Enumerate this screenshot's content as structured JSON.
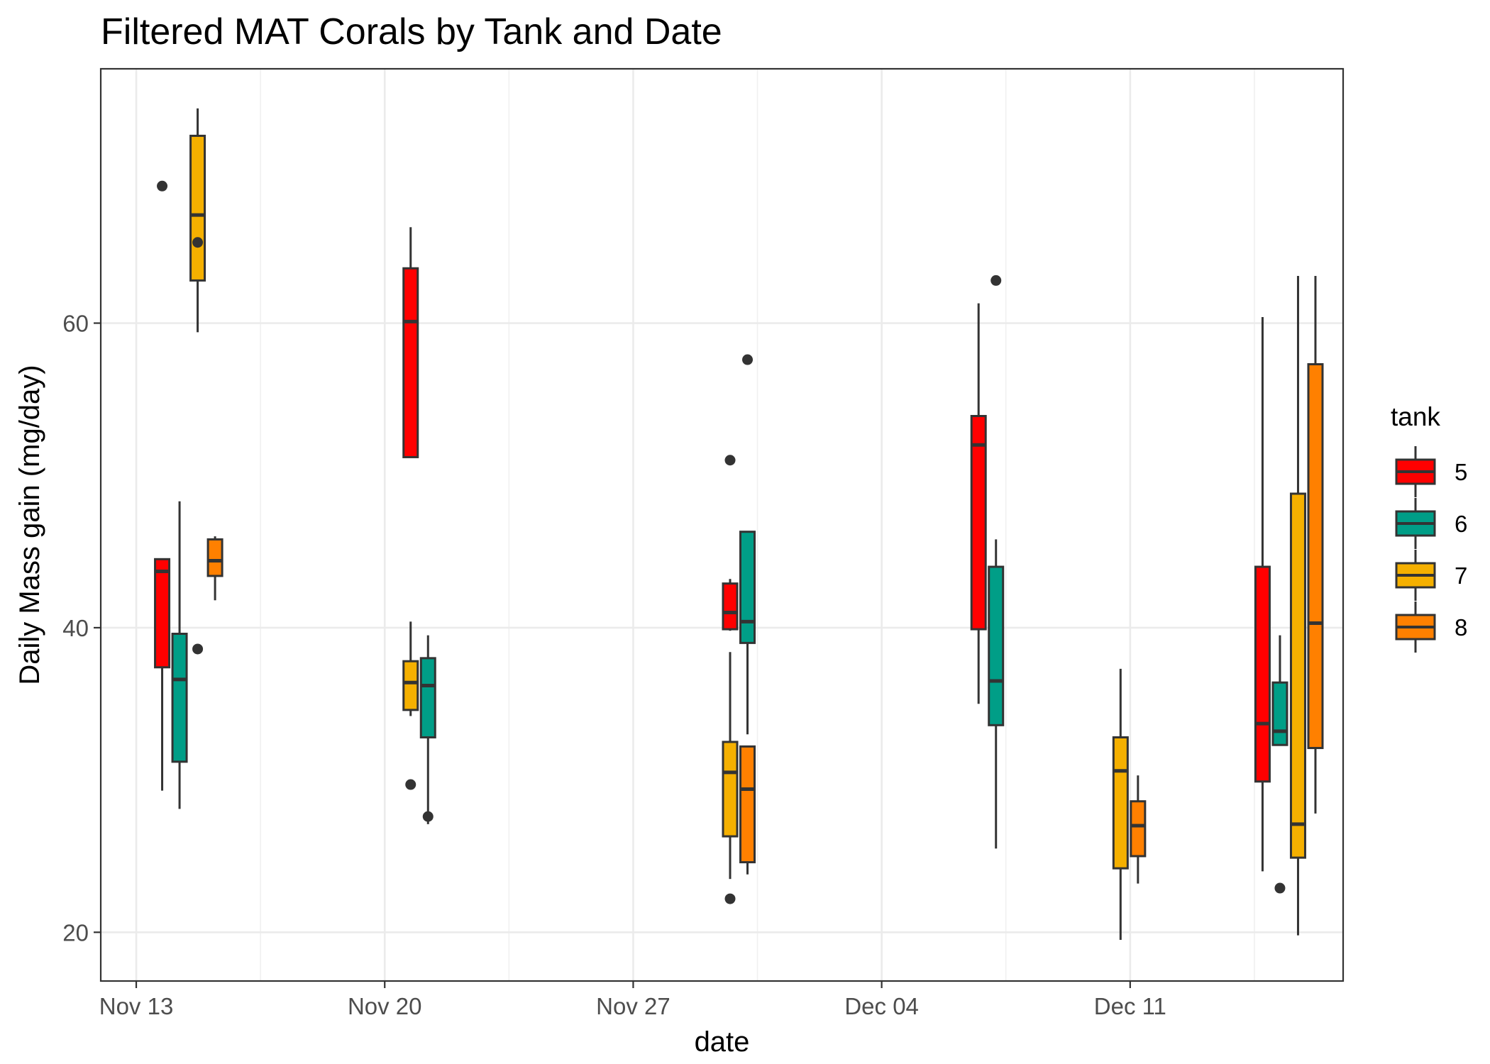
{
  "chart_data": {
    "type": "box",
    "title": "Filtered MAT Corals by Tank and Date",
    "xlabel": "date",
    "ylabel": "Daily Mass gain (mg/day)",
    "x_ticks": [
      "Nov 13",
      "Nov 20",
      "Nov 27",
      "Dec 04",
      "Dec 11"
    ],
    "x_tick_dates": [
      "2017-11-13",
      "2017-11-20",
      "2017-11-27",
      "2017-12-04",
      "2017-12-11"
    ],
    "y_ticks": [
      20,
      40,
      60
    ],
    "xlim": [
      "2017-11-12",
      "2017-12-17"
    ],
    "ylim": [
      16.8,
      76.7
    ],
    "grid": true,
    "legend": {
      "title": "tank",
      "position": "right"
    },
    "series": [
      {
        "name": "5",
        "color": "#ff0000"
      },
      {
        "name": "6",
        "color": "#009e87"
      },
      {
        "name": "7",
        "color": "#f5b000"
      },
      {
        "name": "8",
        "color": "#ff8000"
      }
    ],
    "boxes": [
      {
        "date": "2017-11-14",
        "tank": "5",
        "whisker_low": 29.3,
        "q1": 37.4,
        "median": 43.7,
        "q3": 44.5,
        "whisker_high": 44.5,
        "outliers": [
          69.0
        ]
      },
      {
        "date": "2017-11-14",
        "tank": "6",
        "whisker_low": 28.1,
        "q1": 31.2,
        "median": 36.6,
        "q3": 39.6,
        "whisker_high": 48.3,
        "outliers": []
      },
      {
        "date": "2017-11-15",
        "tank": "7",
        "whisker_low": 59.4,
        "q1": 62.8,
        "median": 67.1,
        "q3": 72.3,
        "whisker_high": 74.1,
        "outliers": [
          65.3,
          38.6
        ]
      },
      {
        "date": "2017-11-15",
        "tank": "8",
        "whisker_low": 41.8,
        "q1": 43.4,
        "median": 44.4,
        "q3": 45.8,
        "whisker_high": 46.0,
        "outliers": []
      },
      {
        "date": "2017-11-21",
        "tank": "5",
        "whisker_low": 51.2,
        "q1": 51.2,
        "median": 60.1,
        "q3": 63.6,
        "whisker_high": 66.3,
        "outliers": []
      },
      {
        "date": "2017-11-21",
        "tank": "6",
        "whisker_low": 27.1,
        "q1": 32.8,
        "median": 36.2,
        "q3": 38.0,
        "whisker_high": 39.5,
        "outliers": [
          27.6
        ]
      },
      {
        "date": "2017-11-21",
        "tank": "7",
        "whisker_low": 34.2,
        "q1": 34.6,
        "median": 36.4,
        "q3": 37.8,
        "whisker_high": 40.4,
        "outliers": [
          29.7
        ]
      },
      {
        "date": "2017-11-30",
        "tank": "5",
        "whisker_low": 39.8,
        "q1": 39.9,
        "median": 41.0,
        "q3": 42.9,
        "whisker_high": 43.2,
        "outliers": [
          51.0,
          22.2
        ]
      },
      {
        "date": "2017-11-30",
        "tank": "6",
        "whisker_low": 33.0,
        "q1": 39.0,
        "median": 40.4,
        "q3": 46.3,
        "whisker_high": 46.3,
        "outliers": [
          57.6
        ]
      },
      {
        "date": "2017-11-30",
        "tank": "7",
        "whisker_low": 23.5,
        "q1": 26.3,
        "median": 30.5,
        "q3": 32.5,
        "whisker_high": 38.4,
        "outliers": []
      },
      {
        "date": "2017-11-30",
        "tank": "8",
        "whisker_low": 23.8,
        "q1": 24.6,
        "median": 29.4,
        "q3": 32.2,
        "whisker_high": 32.2,
        "outliers": []
      },
      {
        "date": "2017-12-07",
        "tank": "5",
        "whisker_low": 35.0,
        "q1": 39.9,
        "median": 52.0,
        "q3": 53.9,
        "whisker_high": 61.3,
        "outliers": []
      },
      {
        "date": "2017-12-07",
        "tank": "6",
        "whisker_low": 25.5,
        "q1": 33.6,
        "median": 36.5,
        "q3": 44.0,
        "whisker_high": 45.8,
        "outliers": [
          62.8
        ]
      },
      {
        "date": "2017-12-11",
        "tank": "7",
        "whisker_low": 19.5,
        "q1": 24.2,
        "median": 30.6,
        "q3": 32.8,
        "whisker_high": 37.3,
        "outliers": []
      },
      {
        "date": "2017-12-11",
        "tank": "8",
        "whisker_low": 23.2,
        "q1": 25.0,
        "median": 27.0,
        "q3": 28.6,
        "whisker_high": 30.3,
        "outliers": []
      },
      {
        "date": "2017-12-15",
        "tank": "5",
        "whisker_low": 24.0,
        "q1": 29.9,
        "median": 33.7,
        "q3": 44.0,
        "whisker_high": 60.4,
        "outliers": []
      },
      {
        "date": "2017-12-15",
        "tank": "6",
        "whisker_low": 32.3,
        "q1": 32.3,
        "median": 33.2,
        "q3": 36.4,
        "whisker_high": 39.5,
        "outliers": [
          22.9
        ]
      },
      {
        "date": "2017-12-16",
        "tank": "7",
        "whisker_low": 19.8,
        "q1": 24.9,
        "median": 27.1,
        "q3": 48.8,
        "whisker_high": 63.1,
        "outliers": []
      },
      {
        "date": "2017-12-16",
        "tank": "8",
        "whisker_low": 27.8,
        "q1": 32.1,
        "median": 40.3,
        "q3": 57.3,
        "whisker_high": 63.1,
        "outliers": []
      }
    ]
  }
}
